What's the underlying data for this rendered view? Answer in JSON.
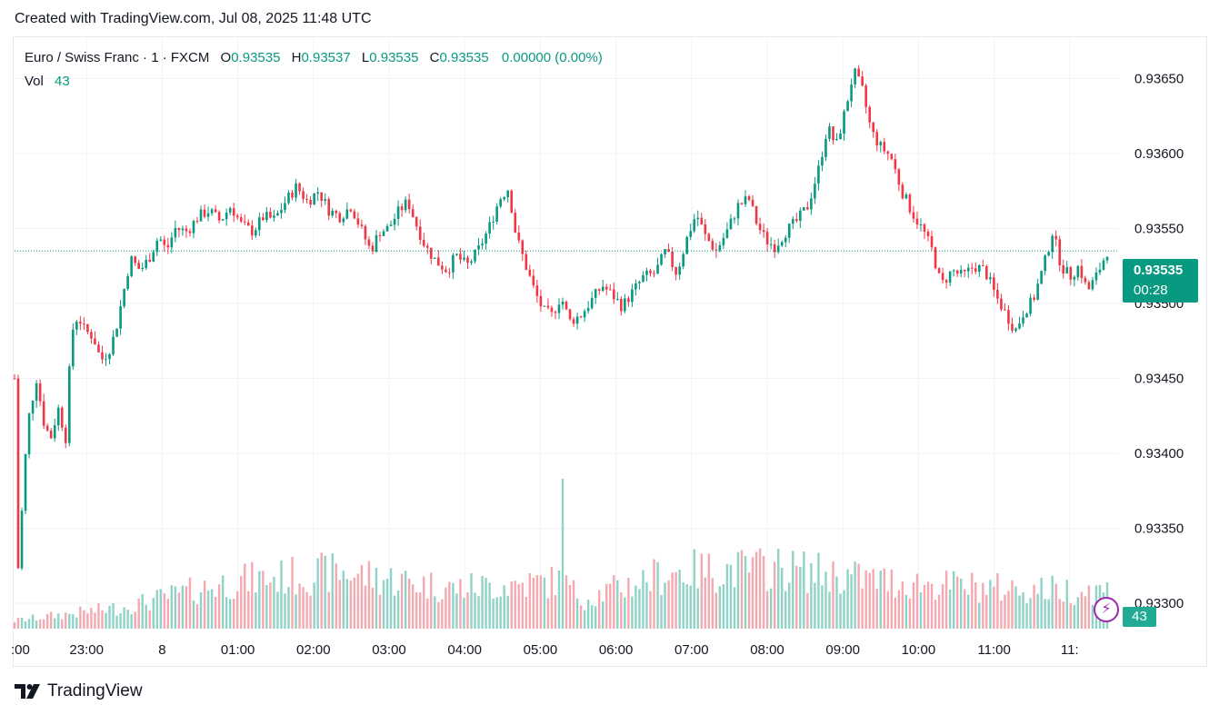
{
  "header": {
    "created_text": "Created with TradingView.com, Jul 08, 2025 11:48 UTC"
  },
  "legend": {
    "symbol": "Euro / Swiss Franc · 1 · FXCM",
    "o_label": "O",
    "o_value": "0.93535",
    "h_label": "H",
    "h_value": "0.93537",
    "l_label": "L",
    "l_value": "0.93535",
    "c_label": "C",
    "c_value": "0.93535",
    "change": "0.00000 (0.00%)",
    "vol_label": "Vol",
    "vol_value": "43"
  },
  "price_label": {
    "price": "0.93535",
    "countdown": "00:28"
  },
  "volume_label": "43",
  "footer": {
    "brand": "TradingView"
  },
  "colors": {
    "up": "#089981",
    "down": "#f23645",
    "vol_up": "#8fd2c6",
    "vol_down": "#f4a9b0",
    "grid": "#f0f3fa"
  },
  "chart_data": {
    "type": "candlestick",
    "y_ticks": [
      "0.93650",
      "0.93600",
      "0.93550",
      "0.93500",
      "0.93450",
      "0.93400",
      "0.93350",
      "0.93300"
    ],
    "x_ticks": [
      ":00",
      "23:00",
      "8",
      "01:00",
      "02:00",
      "03:00",
      "04:00",
      "05:00",
      "06:00",
      "07:00",
      "08:00",
      "09:00",
      "10:00",
      "11:00",
      "11:"
    ],
    "ylim": [
      0.93283,
      0.93677
    ],
    "last_price": 0.93535,
    "grid": true,
    "price_path": [
      [
        0,
        0.9345
      ],
      [
        0.003,
        0.9332
      ],
      [
        0.012,
        0.9342
      ],
      [
        0.02,
        0.9345
      ],
      [
        0.027,
        0.9342
      ],
      [
        0.033,
        0.9341
      ],
      [
        0.04,
        0.9343
      ],
      [
        0.047,
        0.9341
      ],
      [
        0.052,
        0.9348
      ],
      [
        0.058,
        0.93492
      ],
      [
        0.064,
        0.93482
      ],
      [
        0.072,
        0.93478
      ],
      [
        0.079,
        0.93462
      ],
      [
        0.086,
        0.93468
      ],
      [
        0.092,
        0.9348
      ],
      [
        0.099,
        0.93505
      ],
      [
        0.106,
        0.9353
      ],
      [
        0.115,
        0.93522
      ],
      [
        0.123,
        0.9353
      ],
      [
        0.132,
        0.93545
      ],
      [
        0.139,
        0.93535
      ],
      [
        0.147,
        0.9355
      ],
      [
        0.158,
        0.93548
      ],
      [
        0.168,
        0.93558
      ],
      [
        0.178,
        0.93562
      ],
      [
        0.188,
        0.93555
      ],
      [
        0.198,
        0.93565
      ],
      [
        0.208,
        0.93552
      ],
      [
        0.218,
        0.93548
      ],
      [
        0.228,
        0.93558
      ],
      [
        0.238,
        0.93556
      ],
      [
        0.248,
        0.93568
      ],
      [
        0.258,
        0.93578
      ],
      [
        0.268,
        0.93568
      ],
      [
        0.278,
        0.93575
      ],
      [
        0.288,
        0.93562
      ],
      [
        0.298,
        0.93558
      ],
      [
        0.308,
        0.93565
      ],
      [
        0.318,
        0.93548
      ],
      [
        0.326,
        0.93535
      ],
      [
        0.334,
        0.93548
      ],
      [
        0.342,
        0.9355
      ],
      [
        0.352,
        0.93562
      ],
      [
        0.36,
        0.93568
      ],
      [
        0.368,
        0.93552
      ],
      [
        0.376,
        0.93538
      ],
      [
        0.386,
        0.93528
      ],
      [
        0.396,
        0.93522
      ],
      [
        0.404,
        0.93532
      ],
      [
        0.414,
        0.93525
      ],
      [
        0.424,
        0.93535
      ],
      [
        0.434,
        0.9355
      ],
      [
        0.444,
        0.9357
      ],
      [
        0.452,
        0.93577
      ],
      [
        0.459,
        0.93545
      ],
      [
        0.468,
        0.93525
      ],
      [
        0.476,
        0.93508
      ],
      [
        0.484,
        0.93495
      ],
      [
        0.492,
        0.93492
      ],
      [
        0.5,
        0.93505
      ],
      [
        0.508,
        0.93488
      ],
      [
        0.518,
        0.93492
      ],
      [
        0.528,
        0.93502
      ],
      [
        0.538,
        0.93512
      ],
      [
        0.548,
        0.93505
      ],
      [
        0.556,
        0.93498
      ],
      [
        0.566,
        0.93508
      ],
      [
        0.576,
        0.93518
      ],
      [
        0.586,
        0.9352
      ],
      [
        0.596,
        0.93535
      ],
      [
        0.606,
        0.9352
      ],
      [
        0.616,
        0.93545
      ],
      [
        0.624,
        0.9356
      ],
      [
        0.632,
        0.93545
      ],
      [
        0.642,
        0.93535
      ],
      [
        0.652,
        0.93548
      ],
      [
        0.662,
        0.93565
      ],
      [
        0.672,
        0.9357
      ],
      [
        0.68,
        0.93552
      ],
      [
        0.688,
        0.93542
      ],
      [
        0.696,
        0.93538
      ],
      [
        0.706,
        0.93548
      ],
      [
        0.716,
        0.93555
      ],
      [
        0.726,
        0.93565
      ],
      [
        0.736,
        0.9359
      ],
      [
        0.744,
        0.93618
      ],
      [
        0.752,
        0.93605
      ],
      [
        0.76,
        0.93628
      ],
      [
        0.768,
        0.93655
      ],
      [
        0.776,
        0.93642
      ],
      [
        0.784,
        0.93615
      ],
      [
        0.792,
        0.93605
      ],
      [
        0.802,
        0.93598
      ],
      [
        0.812,
        0.93575
      ],
      [
        0.822,
        0.9356
      ],
      [
        0.832,
        0.93548
      ],
      [
        0.84,
        0.93535
      ],
      [
        0.848,
        0.93512
      ],
      [
        0.858,
        0.93522
      ],
      [
        0.868,
        0.93518
      ],
      [
        0.878,
        0.93525
      ],
      [
        0.888,
        0.93522
      ],
      [
        0.898,
        0.93505
      ],
      [
        0.908,
        0.93492
      ],
      [
        0.916,
        0.93482
      ],
      [
        0.924,
        0.93495
      ],
      [
        0.932,
        0.93502
      ],
      [
        0.942,
        0.93525
      ],
      [
        0.95,
        0.93548
      ],
      [
        0.958,
        0.93525
      ],
      [
        0.966,
        0.93518
      ],
      [
        0.974,
        0.93525
      ],
      [
        0.982,
        0.93508
      ],
      [
        0.99,
        0.93518
      ],
      [
        1.0,
        0.93535
      ]
    ],
    "volume_path": [
      [
        0,
        0.06
      ],
      [
        0.1,
        0.16
      ],
      [
        0.2,
        0.35
      ],
      [
        0.3,
        0.42
      ],
      [
        0.4,
        0.3
      ],
      [
        0.5,
        0.35
      ],
      [
        0.52,
        0.22
      ],
      [
        0.6,
        0.42
      ],
      [
        0.7,
        0.45
      ],
      [
        0.8,
        0.35
      ],
      [
        0.9,
        0.3
      ],
      [
        1.0,
        0.28
      ]
    ],
    "volume_spike": {
      "position": 0.503,
      "relative_height": 1.0
    }
  }
}
